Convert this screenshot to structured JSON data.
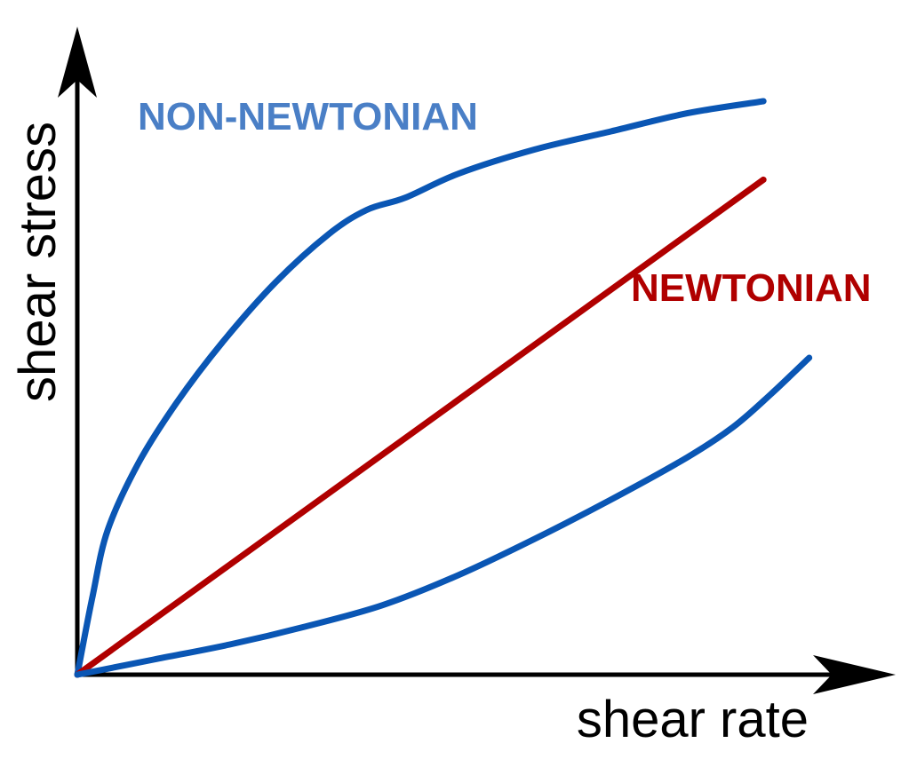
{
  "chart_data": {
    "type": "line",
    "title": "",
    "xlabel": "shear rate",
    "ylabel": "shear stress",
    "xlim": [
      0,
      1
    ],
    "ylim": [
      0,
      1
    ],
    "grid": false,
    "legend": "none",
    "series": [
      {
        "name": "NON-NEWTONIAN",
        "color": "#0a56b4",
        "label_color": "#4a7fc6",
        "x": [
          0,
          0.02,
          0.04,
          0.08,
          0.13,
          0.19,
          0.26,
          0.33,
          0.38,
          0.43,
          0.5,
          0.6,
          0.7,
          0.8,
          0.9
        ],
        "y": [
          0,
          0.13,
          0.24,
          0.35,
          0.45,
          0.55,
          0.65,
          0.73,
          0.77,
          0.79,
          0.83,
          0.87,
          0.9,
          0.93,
          0.95
        ]
      },
      {
        "name": "NEWTONIAN",
        "color": "#b00000",
        "label_color": "#b00000",
        "x": [
          0,
          0.9
        ],
        "y": [
          0,
          0.82
        ]
      },
      {
        "name": "",
        "color": "#0a56b4",
        "x": [
          0,
          0.1,
          0.2,
          0.3,
          0.4,
          0.5,
          0.6,
          0.7,
          0.8,
          0.86,
          0.91,
          0.96
        ],
        "y": [
          0,
          0.025,
          0.05,
          0.08,
          0.115,
          0.165,
          0.225,
          0.29,
          0.36,
          0.41,
          0.465,
          0.525
        ]
      }
    ]
  }
}
